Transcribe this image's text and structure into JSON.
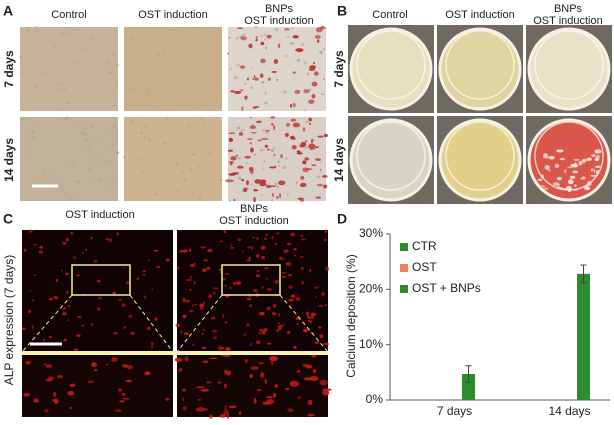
{
  "panel_a": {
    "label": "A",
    "columns": [
      [
        "Control"
      ],
      [
        "OST induction"
      ],
      [
        "BNPs",
        "OST induction"
      ]
    ],
    "rows": [
      "7 days",
      "14 days"
    ]
  },
  "panel_b": {
    "label": "B",
    "columns": [
      [
        "Control"
      ],
      [
        "OST induction"
      ],
      [
        "BNPs",
        "OST induction"
      ]
    ],
    "rows": [
      "7 days",
      "14 days"
    ]
  },
  "panel_c": {
    "label": "C",
    "columns": [
      [
        "OST induction"
      ],
      [
        "BNPs",
        "OST induction"
      ]
    ],
    "y_label": "ALP expression (7 days)"
  },
  "chart_data": {
    "type": "bar",
    "panel_label": "D",
    "y_label": "Calcium deposition (%)",
    "categories": [
      "7 days",
      "14 days"
    ],
    "series": [
      {
        "name": "CTR",
        "color": "#2e8b2e",
        "values": [
          0,
          0
        ],
        "errors": [
          0,
          0
        ]
      },
      {
        "name": "OST",
        "color": "#e8825e",
        "values": [
          0,
          0
        ],
        "errors": [
          0,
          0
        ]
      },
      {
        "name": "OST + BNPs",
        "color": "#2e8b2e",
        "values": [
          4.7,
          22.8
        ],
        "errors": [
          1.5,
          1.6
        ]
      }
    ],
    "ylim": [
      0,
      30
    ],
    "yticks": [
      {
        "value": 0,
        "label": "0%"
      },
      {
        "value": 10,
        "label": "10%"
      },
      {
        "value": 20,
        "label": "20%"
      },
      {
        "value": 30,
        "label": "30%"
      }
    ],
    "grid": false
  }
}
